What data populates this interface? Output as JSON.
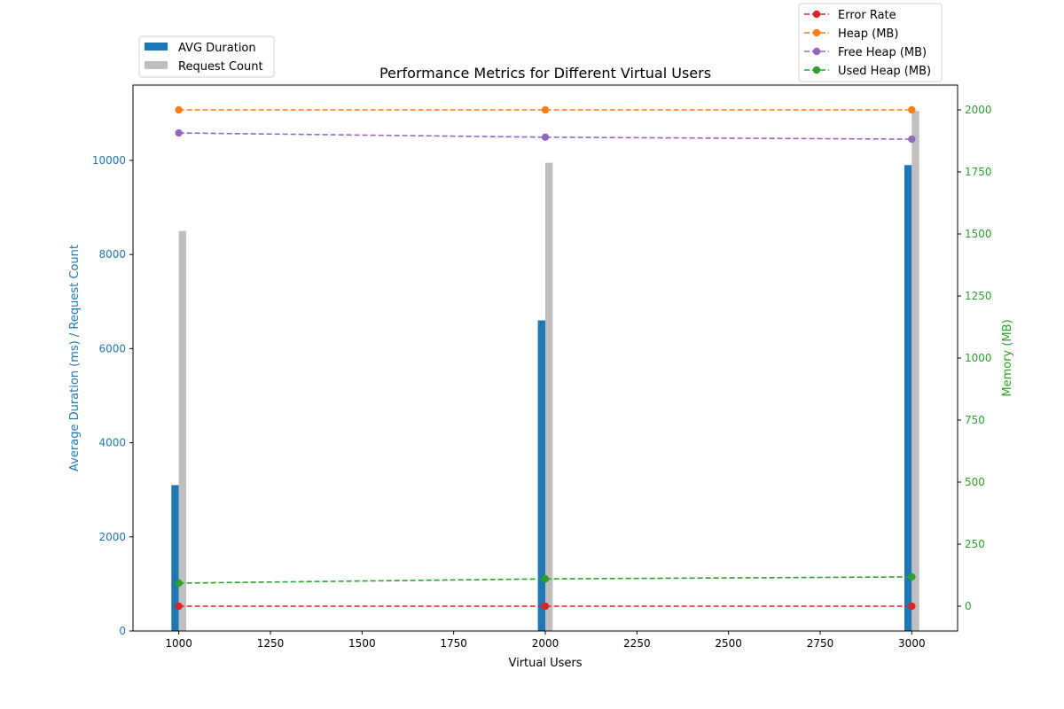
{
  "chart_data": {
    "type": "bar",
    "title": "Performance Metrics for Different Virtual Users",
    "xlabel": "Virtual Users",
    "ylabel_left": "Average Duration (ms) / Request Count",
    "ylabel_right": "Memory (MB)",
    "x": [
      1000,
      2000,
      3000
    ],
    "xlim": [
      875,
      3125
    ],
    "xticks": [
      1000,
      1250,
      1500,
      1750,
      2000,
      2250,
      2500,
      2750,
      3000
    ],
    "ylim_left": [
      0,
      11600
    ],
    "yticks_left": [
      0,
      2000,
      4000,
      6000,
      8000,
      10000
    ],
    "ylim_right": [
      -100,
      2100
    ],
    "yticks_right": [
      0,
      250,
      500,
      750,
      1000,
      1250,
      1500,
      1750,
      2000
    ],
    "colors": {
      "left_axis": "#1f77b4",
      "right_axis": "#2ca02c"
    },
    "bar_series": [
      {
        "name": "AVG Duration",
        "color": "#1f77b4",
        "values": [
          3100,
          6600,
          9900
        ]
      },
      {
        "name": "Request Count",
        "color": "#bfbfbf",
        "values": [
          8500,
          9950,
          11050
        ]
      }
    ],
    "line_series": [
      {
        "name": "Error Rate",
        "color": "#d62728",
        "values": [
          0,
          0,
          0
        ]
      },
      {
        "name": "Heap (MB)",
        "color": "#ff7f0e",
        "values": [
          2000,
          2000,
          2000
        ]
      },
      {
        "name": "Free Heap (MB)",
        "color": "#9467bd",
        "values": [
          1907,
          1890,
          1882
        ]
      },
      {
        "name": "Used Heap (MB)",
        "color": "#2ca02c",
        "values": [
          93,
          110,
          118
        ]
      }
    ],
    "grid": false,
    "legend_bars": "top-left outside",
    "legend_lines": "top-right outside"
  }
}
